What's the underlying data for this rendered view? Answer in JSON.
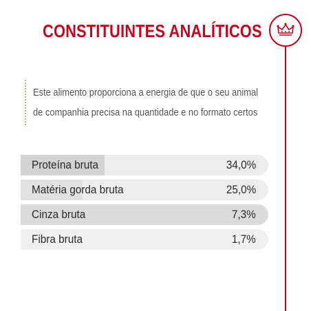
{
  "title": "CONSTITUINTES ANALÍTICOS",
  "intro": "Este alimento proporciona a energia de que o seu animal de companhia precisa na quantidade e no formato certos",
  "brand_icon": "crown-icon",
  "colors": {
    "accent": "#d0021b",
    "row_dark": "#d4d3d3",
    "row_light": "#ededed",
    "text": "#2a2a2a"
  },
  "constituents": [
    {
      "label": "Proteína bruta",
      "value": "34,0%"
    },
    {
      "label": "Matéria gorda bruta",
      "value": "25,0%"
    },
    {
      "label": "Cinza bruta",
      "value": "7,3%"
    },
    {
      "label": "Fibra bruta",
      "value": "1,7%"
    }
  ]
}
